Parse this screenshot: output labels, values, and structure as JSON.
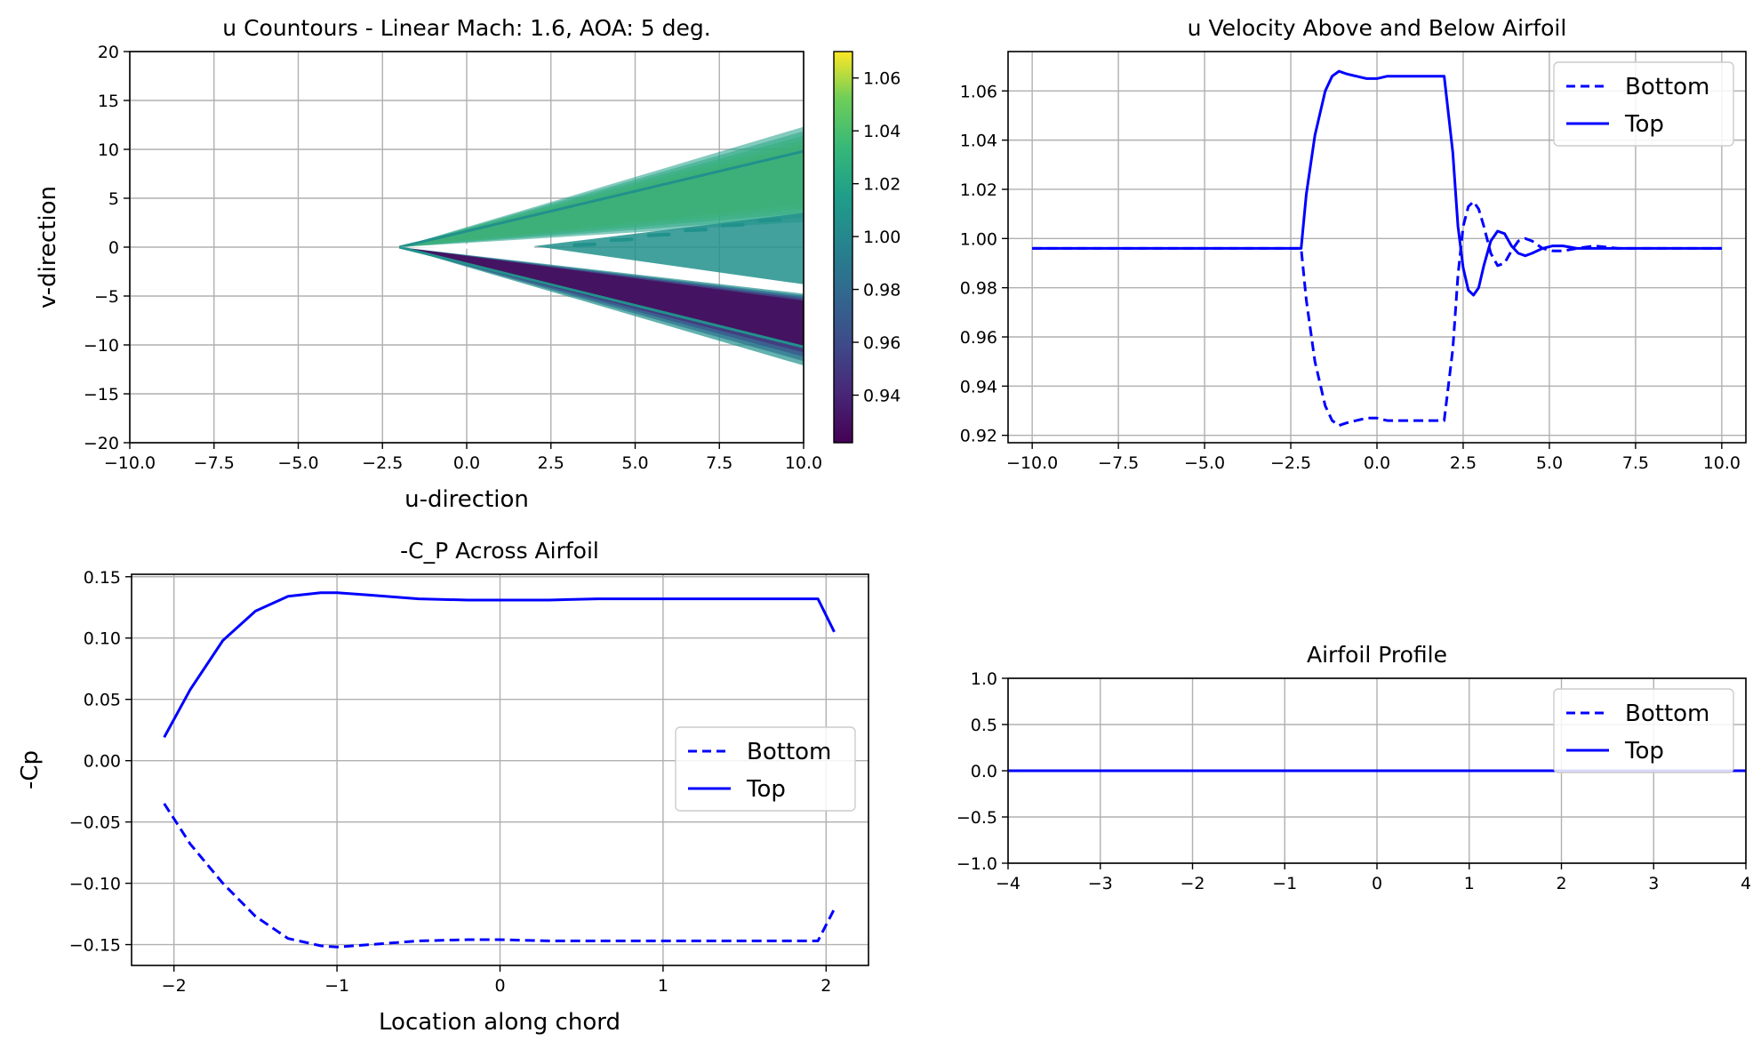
{
  "colors": {
    "line": "#0000ff",
    "grid": "#b0b0b0",
    "contour_low": "#440154",
    "contour_mid": "#21918c",
    "contour_high": "#fde725"
  },
  "colorbar": {
    "ticks": [
      "1.06",
      "1.04",
      "1.02",
      "1.00",
      "0.98",
      "0.96",
      "0.94"
    ],
    "tick_values": [
      1.06,
      1.04,
      1.02,
      1.0,
      0.98,
      0.96,
      0.94
    ],
    "range": [
      0.922,
      1.07
    ],
    "colormap": "viridis"
  },
  "chart_data": [
    {
      "id": "contour",
      "type": "contour",
      "title": "u Countours - Linear Mach: 1.6, AOA: 5 deg.",
      "xlabel": "u-direction",
      "ylabel": "v-direction",
      "xlim": [
        -10,
        10
      ],
      "ylim": [
        -20,
        20
      ],
      "xticks": [
        "−10.0",
        "−7.5",
        "−5.0",
        "−2.5",
        "0.0",
        "2.5",
        "5.0",
        "7.5",
        "10.0"
      ],
      "xtick_values": [
        -10,
        -7.5,
        -5,
        -2.5,
        0,
        2.5,
        5,
        7.5,
        10
      ],
      "yticks": [
        "20",
        "15",
        "10",
        "5",
        "0",
        "−5",
        "−10",
        "−15",
        "−20"
      ],
      "ytick_values": [
        20,
        15,
        10,
        5,
        0,
        -5,
        -10,
        -15,
        -20
      ],
      "grid": true,
      "mach": 1.6,
      "aoa_deg": 5,
      "leading_edge_x": -2,
      "trailing_edge_x": 2,
      "u_range": [
        0.922,
        1.07
      ]
    },
    {
      "id": "velocity",
      "type": "line",
      "title": "u Velocity Above and Below Airfoil",
      "xlim": [
        -10.7,
        10.7
      ],
      "ylim": [
        0.917,
        1.076
      ],
      "xticks": [
        "−10.0",
        "−7.5",
        "−5.0",
        "−2.5",
        "0.0",
        "2.5",
        "5.0",
        "7.5",
        "10.0"
      ],
      "xtick_values": [
        -10,
        -7.5,
        -5,
        -2.5,
        0,
        2.5,
        5,
        7.5,
        10
      ],
      "yticks": [
        "1.06",
        "1.04",
        "1.02",
        "1.00",
        "0.98",
        "0.96",
        "0.94",
        "0.92"
      ],
      "ytick_values": [
        1.06,
        1.04,
        1.02,
        1.0,
        0.98,
        0.96,
        0.94,
        0.92
      ],
      "grid": true,
      "legend": "top-right",
      "series": [
        {
          "name": "Bottom",
          "style": "dashed",
          "x": [
            -10,
            -2.2,
            -2.05,
            -1.8,
            -1.5,
            -1.3,
            -1.1,
            -0.9,
            -0.6,
            -0.3,
            0,
            0.3,
            0.6,
            1.0,
            1.5,
            1.95,
            2.2,
            2.35,
            2.5,
            2.65,
            2.8,
            2.95,
            3.1,
            3.3,
            3.5,
            3.7,
            3.9,
            4.1,
            4.3,
            4.5,
            4.8,
            5.1,
            5.4,
            5.8,
            6.3,
            7.0,
            8.0,
            10
          ],
          "y": [
            0.996,
            0.996,
            0.975,
            0.95,
            0.932,
            0.926,
            0.924,
            0.925,
            0.926,
            0.927,
            0.927,
            0.926,
            0.926,
            0.926,
            0.926,
            0.926,
            0.955,
            0.985,
            1.005,
            1.013,
            1.015,
            1.012,
            1.005,
            0.994,
            0.989,
            0.99,
            0.995,
            0.999,
            1.0,
            0.999,
            0.996,
            0.995,
            0.995,
            0.996,
            0.997,
            0.996,
            0.996,
            0.996
          ]
        },
        {
          "name": "Top",
          "style": "solid",
          "x": [
            -10,
            -2.2,
            -2.05,
            -1.8,
            -1.5,
            -1.3,
            -1.1,
            -0.9,
            -0.6,
            -0.3,
            0,
            0.3,
            0.6,
            1.0,
            1.5,
            1.95,
            2.2,
            2.35,
            2.5,
            2.65,
            2.8,
            2.95,
            3.1,
            3.3,
            3.5,
            3.7,
            3.9,
            4.1,
            4.3,
            4.5,
            4.8,
            5.1,
            5.4,
            5.8,
            6.3,
            7.0,
            8.0,
            10
          ],
          "y": [
            0.996,
            0.996,
            1.018,
            1.042,
            1.06,
            1.066,
            1.068,
            1.067,
            1.066,
            1.065,
            1.065,
            1.066,
            1.066,
            1.066,
            1.066,
            1.066,
            1.035,
            1.005,
            0.988,
            0.979,
            0.977,
            0.98,
            0.989,
            0.999,
            1.003,
            1.002,
            0.997,
            0.994,
            0.993,
            0.994,
            0.996,
            0.997,
            0.997,
            0.996,
            0.996,
            0.996,
            0.996,
            0.996
          ]
        }
      ]
    },
    {
      "id": "cp",
      "type": "line",
      "title": "-C_P Across Airfoil",
      "xlabel": "Location along chord",
      "ylabel": "-Cp",
      "xlim": [
        -2.26,
        2.26
      ],
      "ylim": [
        -0.167,
        0.152
      ],
      "xticks": [
        "−2",
        "−1",
        "0",
        "1",
        "2"
      ],
      "xtick_values": [
        -2,
        -1,
        0,
        1,
        2
      ],
      "yticks": [
        "0.15",
        "0.10",
        "0.05",
        "0.00",
        "−0.05",
        "−0.10",
        "−0.15"
      ],
      "ytick_values": [
        0.15,
        0.1,
        0.05,
        0.0,
        -0.05,
        -0.1,
        -0.15
      ],
      "grid": true,
      "legend": "center-right",
      "series": [
        {
          "name": "Bottom",
          "style": "dashed",
          "x": [
            -2.06,
            -1.9,
            -1.7,
            -1.5,
            -1.3,
            -1.1,
            -1.0,
            -0.8,
            -0.5,
            -0.2,
            0.0,
            0.3,
            0.6,
            1.0,
            1.5,
            1.95,
            2.05
          ],
          "y": [
            -0.035,
            -0.068,
            -0.1,
            -0.127,
            -0.145,
            -0.151,
            -0.152,
            -0.15,
            -0.147,
            -0.146,
            -0.146,
            -0.147,
            -0.147,
            -0.147,
            -0.147,
            -0.147,
            -0.121
          ]
        },
        {
          "name": "Top",
          "style": "solid",
          "x": [
            -2.06,
            -1.9,
            -1.7,
            -1.5,
            -1.3,
            -1.1,
            -1.0,
            -0.8,
            -0.5,
            -0.2,
            0.0,
            0.3,
            0.6,
            1.0,
            1.5,
            1.95,
            2.05
          ],
          "y": [
            0.019,
            0.058,
            0.098,
            0.122,
            0.134,
            0.137,
            0.137,
            0.135,
            0.132,
            0.131,
            0.131,
            0.131,
            0.132,
            0.132,
            0.132,
            0.132,
            0.105
          ]
        }
      ]
    },
    {
      "id": "profile",
      "type": "line",
      "title": "Airfoil Profile",
      "xlim": [
        -4,
        4
      ],
      "ylim": [
        -1,
        1
      ],
      "xticks": [
        "−4",
        "−3",
        "−2",
        "−1",
        "0",
        "1",
        "2",
        "3",
        "4"
      ],
      "xtick_values": [
        -4,
        -3,
        -2,
        -1,
        0,
        1,
        2,
        3,
        4
      ],
      "yticks": [
        "1.0",
        "0.5",
        "0.0",
        "−0.5",
        "−1.0"
      ],
      "ytick_values": [
        1,
        0.5,
        0,
        -0.5,
        -1
      ],
      "grid": true,
      "legend": "top-right",
      "series": [
        {
          "name": "Bottom",
          "style": "dashed",
          "x": [
            -4,
            4
          ],
          "y": [
            0,
            0
          ]
        },
        {
          "name": "Top",
          "style": "solid",
          "x": [
            -4,
            4
          ],
          "y": [
            0,
            0
          ]
        }
      ]
    }
  ]
}
